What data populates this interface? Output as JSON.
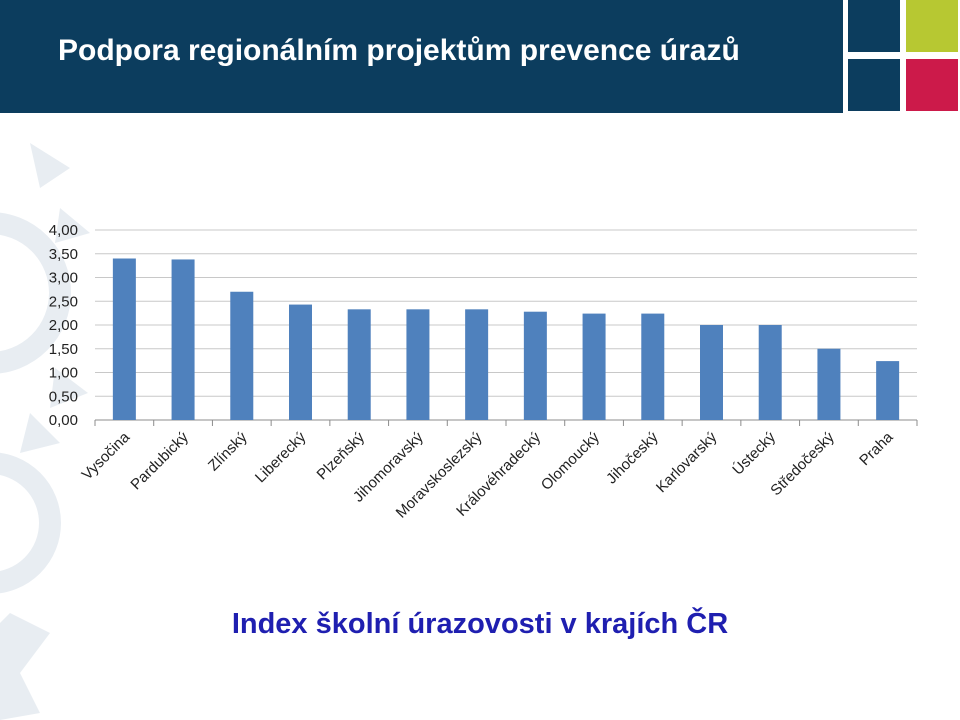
{
  "header": {
    "title": "Podpora regionálním projektům prevence úrazů",
    "colors": {
      "banner": "#0c3d5e"
    },
    "squares": [
      {
        "color": "#0c3d5e"
      },
      {
        "color": "#b7c832"
      },
      {
        "color": "#0c3d5e"
      },
      {
        "color": "#cc1a4a"
      }
    ]
  },
  "subtitle": "Index školní úrazovosti v krajích ČR",
  "chart_data": {
    "type": "bar",
    "title": "",
    "xlabel": "",
    "ylabel": "",
    "ylim": [
      0,
      4
    ],
    "yticks": [
      "0,00",
      "0,50",
      "1,00",
      "1,50",
      "2,00",
      "2,50",
      "3,00",
      "3,50",
      "4,00"
    ],
    "grid": true,
    "bar_color": "#4f81bd",
    "categories": [
      "Vysočina",
      "Pardubický",
      "Zlínský",
      "Liberecký",
      "Plzeňský",
      "Jihomoravský",
      "Moravskoslezský",
      "Královéhradecký",
      "Olomoucký",
      "Jihočeský",
      "Karlovarský",
      "Ústecký",
      "Středočeský",
      "Praha"
    ],
    "values": [
      3.4,
      3.38,
      2.7,
      2.43,
      2.33,
      2.33,
      2.33,
      2.28,
      2.24,
      2.24,
      2.0,
      2.0,
      1.5,
      1.24
    ]
  }
}
